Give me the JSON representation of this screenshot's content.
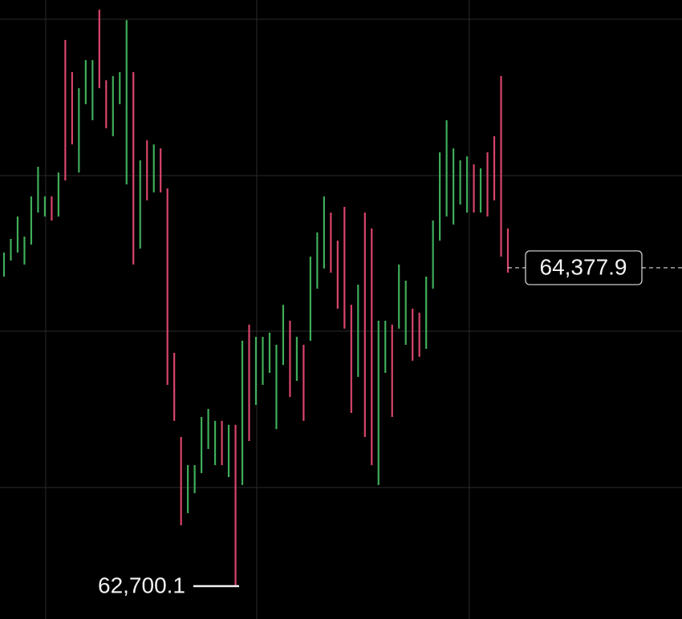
{
  "chart_data": {
    "type": "candlestick",
    "ylim": [
      62527,
      65789
    ],
    "highs": [
      64458,
      64530,
      64648,
      64542,
      64754,
      64910,
      64754,
      64754,
      64880,
      65578,
      65409,
      65324,
      65472,
      65472,
      65738,
      65366,
      65388,
      65409,
      65683,
      65409,
      64944,
      65050,
      65028,
      65007,
      64796,
      63930,
      63486,
      63338,
      63338,
      63592,
      63634,
      63571,
      63571,
      63550,
      63550,
      63993,
      64078,
      64014,
      64014,
      64036,
      63972,
      64183,
      64099,
      64014,
      63972,
      64437,
      64564,
      64754,
      64669,
      64521,
      64699,
      64183,
      64289,
      64669,
      64585,
      64099,
      64099,
      64078,
      64395,
      64310,
      64162,
      64141,
      64331,
      64627,
      64986,
      65155,
      65007,
      64944,
      64965,
      64923,
      64902,
      64986,
      65071,
      65388,
      64585
    ],
    "lows": [
      64331,
      64416,
      64458,
      64395,
      64500,
      64669,
      64648,
      64627,
      64648,
      64838,
      65028,
      64880,
      65240,
      65155,
      65324,
      65113,
      65071,
      65240,
      64817,
      64395,
      64479,
      64733,
      64775,
      64775,
      63761,
      63571,
      63021,
      63085,
      63190,
      63296,
      63423,
      63338,
      63338,
      63275,
      62700.1,
      63233,
      63465,
      63655,
      63761,
      63824,
      63528,
      63866,
      63697,
      63782,
      63571,
      63993,
      64268,
      64374,
      64352,
      64162,
      64057,
      63613,
      63803,
      63486,
      63338,
      63233,
      63824,
      63592,
      64057,
      63972,
      63888,
      63909,
      63951,
      64268,
      64521,
      64648,
      64606,
      64711,
      64669,
      64669,
      64669,
      64648,
      64733,
      64437,
      64352
    ],
    "colors": [
      "#3fae5a",
      "#3fae5a",
      "#3fae5a",
      "#3fae5a",
      "#3fae5a",
      "#3fae5a",
      "#3fae5a",
      "#d9456b",
      "#3fae5a",
      "#d9456b",
      "#d9456b",
      "#3fae5a",
      "#3fae5a",
      "#3fae5a",
      "#d9456b",
      "#d9456b",
      "#3fae5a",
      "#3fae5a",
      "#3fae5a",
      "#d9456b",
      "#3fae5a",
      "#d9456b",
      "#3fae5a",
      "#d9456b",
      "#d9456b",
      "#d9456b",
      "#d9456b",
      "#3fae5a",
      "#3fae5a",
      "#3fae5a",
      "#3fae5a",
      "#3fae5a",
      "#d9456b",
      "#3fae5a",
      "#d9456b",
      "#3fae5a",
      "#d9456b",
      "#3fae5a",
      "#3fae5a",
      "#3fae5a",
      "#3fae5a",
      "#3fae5a",
      "#d9456b",
      "#3fae5a",
      "#d9456b",
      "#3fae5a",
      "#3fae5a",
      "#3fae5a",
      "#d9456b",
      "#d9456b",
      "#d9456b",
      "#d9456b",
      "#3fae5a",
      "#d9456b",
      "#d9456b",
      "#3fae5a",
      "#3fae5a",
      "#d9456b",
      "#3fae5a",
      "#3fae5a",
      "#d9456b",
      "#d9456b",
      "#3fae5a",
      "#3fae5a",
      "#3fae5a",
      "#3fae5a",
      "#3fae5a",
      "#3fae5a",
      "#3fae5a",
      "#d9456b",
      "#3fae5a",
      "#d9456b",
      "#d9456b",
      "#d9456b",
      "#d9456b"
    ],
    "last_price": {
      "value": 64377.9,
      "label": "64,377.9"
    },
    "low_marker": {
      "value": 62700.1,
      "label": "62,700.1"
    }
  }
}
